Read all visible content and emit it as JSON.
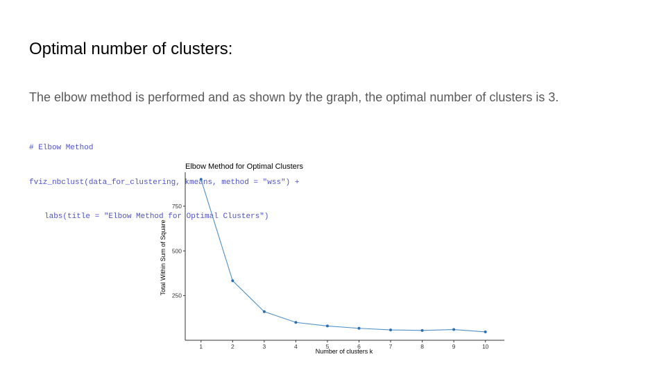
{
  "slide": {
    "title": "Optimal number of clusters:",
    "body": "The elbow method is performed and as shown by the graph, the optimal number of clusters is 3."
  },
  "code": {
    "lines": [
      "# Elbow Method",
      "fviz_nbclust(data_for_clustering, kmeans, method = \"wss\") +",
      "labs(title = \"Elbow Method for Optimal Clusters\")"
    ],
    "color": "#4f52c9"
  },
  "chart_data": {
    "type": "line",
    "title": "Elbow Method for Optimal Clusters",
    "xlabel": "Number of clusters k",
    "ylabel": "Total Within Sum of Square",
    "x": [
      1,
      2,
      3,
      4,
      5,
      6,
      7,
      8,
      9,
      10
    ],
    "y": [
      900,
      333,
      160,
      100,
      80,
      67,
      58,
      55,
      60,
      47
    ],
    "x_ticks": [
      "1",
      "2",
      "3",
      "4",
      "5",
      "6",
      "7",
      "8",
      "9",
      "10"
    ],
    "y_ticks": [
      250,
      500,
      750
    ],
    "y_tick_labels": [
      "250",
      "500",
      "750"
    ],
    "xlim": [
      0.5,
      10.6
    ],
    "ylim": [
      0,
      940
    ],
    "grid": false,
    "line_color": "#4e8fc6",
    "point_color": "#2f6fb0"
  }
}
